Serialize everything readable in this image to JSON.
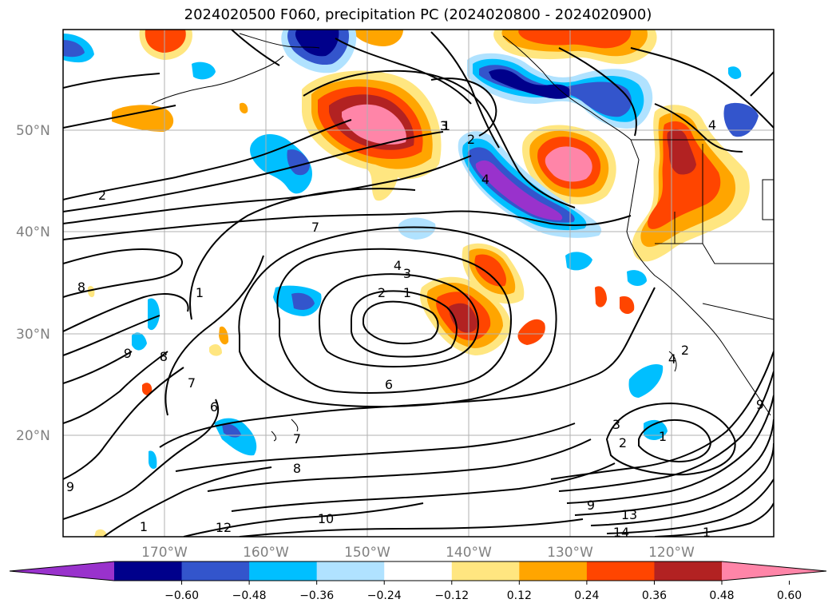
{
  "title": "2024020500 F060, precipitation PC (2024020800 - 2024020900)",
  "map": {
    "lat_labels": [
      "50°N",
      "40°N",
      "30°N",
      "20°N"
    ],
    "lon_labels": [
      "170°W",
      "160°W",
      "150°W",
      "140°W",
      "130°W",
      "120°W"
    ],
    "fill_colors": {
      "neg_extreme": "#9932CC",
      "neg_048_060": "#00008B",
      "neg_036_048": "#3355CC",
      "neg_024_036": "#00BFFF",
      "neg_012_024": "#B0E2FF",
      "pos_012_024": "#FFE680",
      "pos_024_036": "#FFA500",
      "pos_036_048": "#FF4500",
      "pos_048_060": "#B22222",
      "pos_extreme": "#FF85A8"
    },
    "contour_labels": [
      {
        "text": "2"
      },
      {
        "text": "7"
      },
      {
        "text": "8"
      },
      {
        "text": "1"
      },
      {
        "text": "9"
      },
      {
        "text": "8"
      },
      {
        "text": "7"
      },
      {
        "text": "6"
      },
      {
        "text": "7"
      },
      {
        "text": "8"
      },
      {
        "text": "9"
      },
      {
        "text": "1"
      },
      {
        "text": "12"
      },
      {
        "text": "10"
      },
      {
        "text": "6"
      },
      {
        "text": "4"
      },
      {
        "text": "3"
      },
      {
        "text": "2"
      },
      {
        "text": "1"
      },
      {
        "text": "1"
      },
      {
        "text": "3"
      },
      {
        "text": "2"
      },
      {
        "text": "4"
      },
      {
        "text": "2"
      },
      {
        "text": "4"
      },
      {
        "text": "4"
      },
      {
        "text": "3"
      },
      {
        "text": "2"
      },
      {
        "text": "1"
      },
      {
        "text": "9"
      },
      {
        "text": "13"
      },
      {
        "text": "14"
      },
      {
        "text": "9"
      },
      {
        "text": "1"
      }
    ]
  },
  "colorbar": {
    "ticks": [
      "−0.60",
      "−0.48",
      "−0.36",
      "−0.24",
      "−0.12",
      "0.12",
      "0.24",
      "0.36",
      "0.48",
      "0.60"
    ],
    "segments": [
      "#9932CC",
      "#00008B",
      "#3355CC",
      "#00BFFF",
      "#B0E2FF",
      "#FFFFFF",
      "#FFE680",
      "#FFA500",
      "#FF4500",
      "#B22222",
      "#FF85A8"
    ]
  }
}
